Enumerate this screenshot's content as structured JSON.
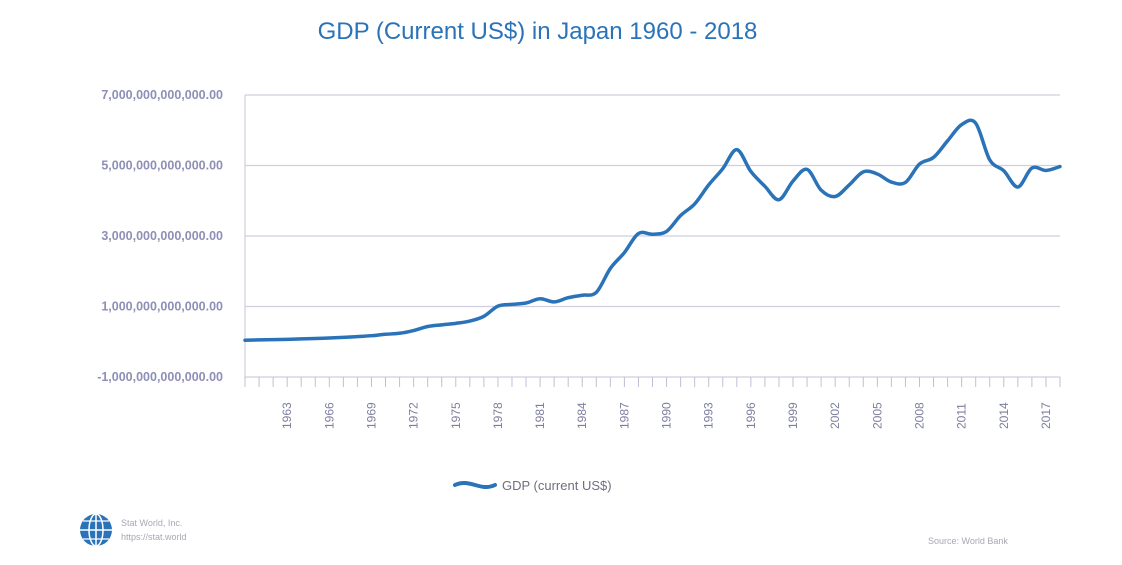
{
  "chart_data": {
    "type": "line",
    "title": "GDP (Current US$) in Japan 1960 - 2018",
    "xlabel": "",
    "ylabel": "",
    "ylim": [
      -1000000000000,
      7000000000000
    ],
    "xlim": [
      1960,
      2018
    ],
    "y_ticks": [
      -1000000000000,
      1000000000000,
      3000000000000,
      5000000000000,
      7000000000000
    ],
    "y_tick_labels": [
      "-1,000,000,000,000.00",
      "1,000,000,000,000.00",
      "3,000,000,000,000.00",
      "5,000,000,000,000.00",
      "7,000,000,000,000.00"
    ],
    "x_tick_labels": [
      "1963",
      "1966",
      "1969",
      "1972",
      "1975",
      "1978",
      "1981",
      "1984",
      "1987",
      "1990",
      "1993",
      "1996",
      "1999",
      "2002",
      "2005",
      "2008",
      "2011",
      "2014",
      "2017"
    ],
    "x_tick_positions": [
      1963,
      1966,
      1969,
      1972,
      1975,
      1978,
      1981,
      1984,
      1987,
      1990,
      1993,
      1996,
      1999,
      2002,
      2005,
      2008,
      2011,
      2014,
      2017
    ],
    "grid": true,
    "legend": "bottom",
    "series": [
      {
        "name": "GDP (current US$)",
        "color": "#2a73b8",
        "x": [
          1960,
          1961,
          1962,
          1963,
          1964,
          1965,
          1966,
          1967,
          1968,
          1969,
          1970,
          1971,
          1972,
          1973,
          1974,
          1975,
          1976,
          1977,
          1978,
          1979,
          1980,
          1981,
          1982,
          1983,
          1984,
          1985,
          1986,
          1987,
          1988,
          1989,
          1990,
          1991,
          1992,
          1993,
          1994,
          1995,
          1996,
          1997,
          1998,
          1999,
          2000,
          2001,
          2002,
          2003,
          2004,
          2005,
          2006,
          2007,
          2008,
          2009,
          2010,
          2011,
          2012,
          2013,
          2014,
          2015,
          2016,
          2017,
          2018
        ],
        "values": [
          44000000000,
          53000000000,
          61000000000,
          69000000000,
          81000000000,
          91000000000,
          106000000000,
          124000000000,
          147000000000,
          172000000000,
          212000000000,
          240000000000,
          318000000000,
          432000000000,
          480000000000,
          522000000000,
          587000000000,
          721000000000,
          1010000000000,
          1060000000000,
          1100000000000,
          1220000000000,
          1130000000000,
          1250000000000,
          1320000000000,
          1400000000000,
          2080000000000,
          2530000000000,
          3070000000000,
          3050000000000,
          3130000000000,
          3580000000000,
          3910000000000,
          4450000000000,
          4910000000000,
          5450000000000,
          4830000000000,
          4410000000000,
          4030000000000,
          4560000000000,
          4890000000000,
          4300000000000,
          4120000000000,
          4450000000000,
          4820000000000,
          4760000000000,
          4530000000000,
          4520000000000,
          5040000000000,
          5230000000000,
          5700000000000,
          6160000000000,
          6200000000000,
          5160000000000,
          4850000000000,
          4390000000000,
          4930000000000,
          4860000000000,
          4970000000000
        ]
      }
    ]
  },
  "footer": {
    "brand_name": "Stat World, Inc.",
    "brand_url": "https://stat.world",
    "source": "Source: World Bank"
  }
}
